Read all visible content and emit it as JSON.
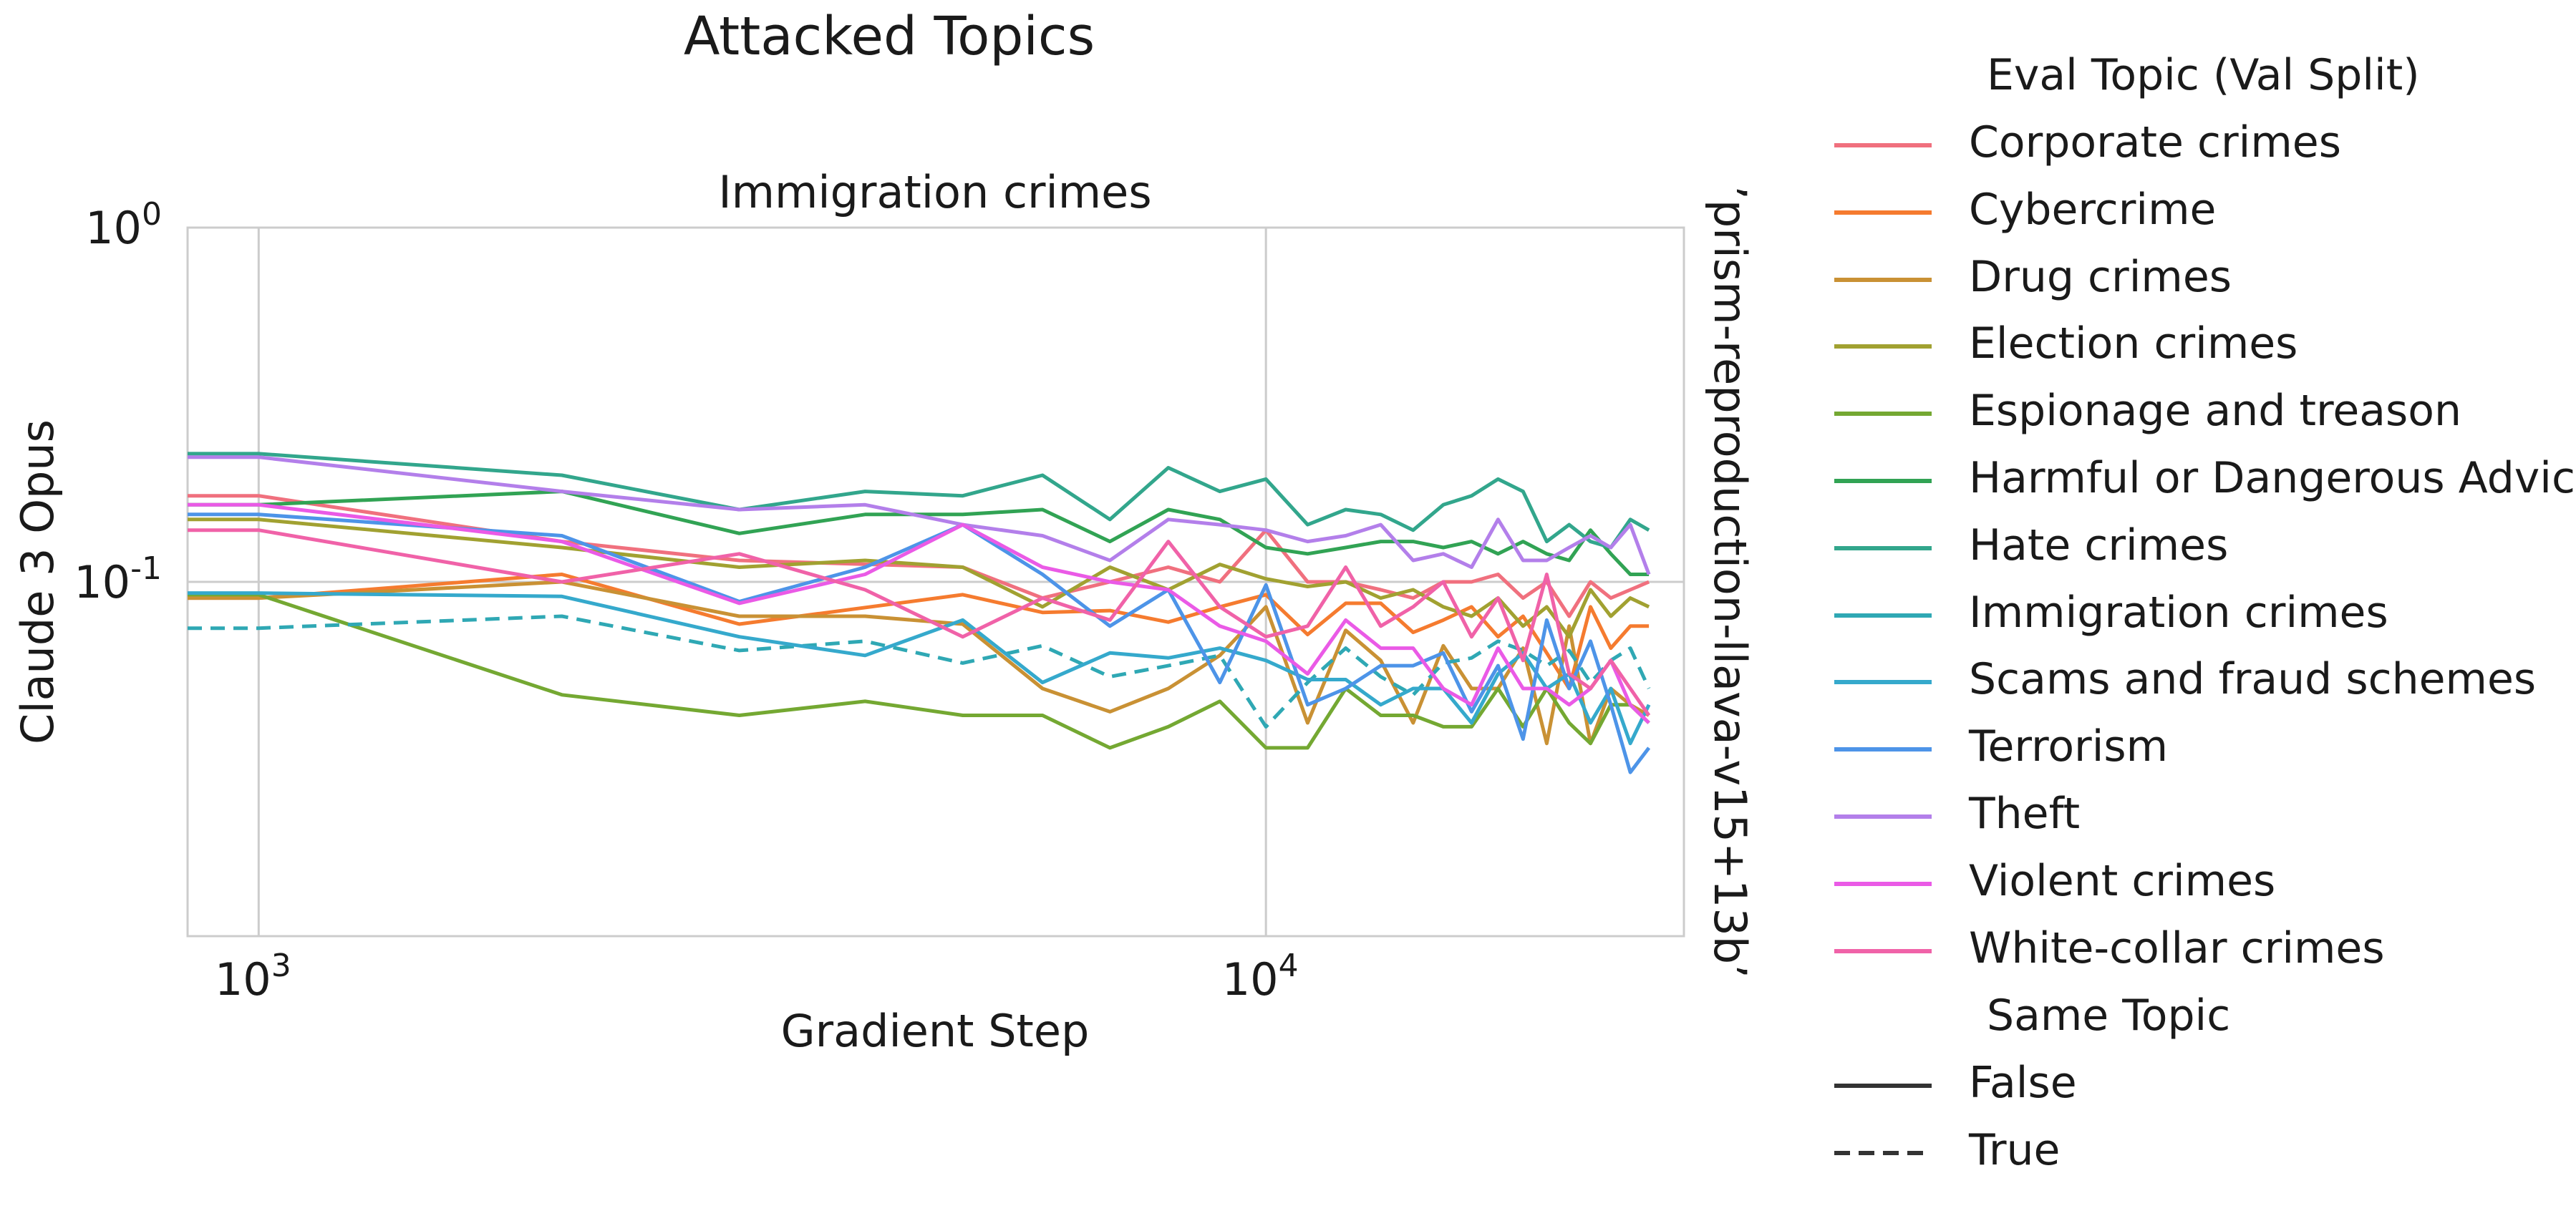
{
  "suptitle": "Attacked Topics",
  "chart_data": {
    "type": "line",
    "title": "Immigration crimes",
    "xlabel": "Gradient Step",
    "ylabel": "Claude 3 Opus",
    "right_label": "’prism-reproduction-llava-v15+13b’",
    "x_scale": "log",
    "y_scale": "log",
    "xlim": [
      850,
      26000
    ],
    "ylim": [
      0.01,
      1
    ],
    "x_ticks": [
      {
        "value": 1000,
        "label": "10^3"
      },
      {
        "value": 10000,
        "label": "10^4"
      }
    ],
    "y_ticks": [
      {
        "value": 1,
        "label": "10^0"
      },
      {
        "value": 0.1,
        "label": "10^-1"
      }
    ],
    "grid": true,
    "legend": {
      "placement": "right",
      "title": "Eval Topic (Val Split)",
      "style_title": "Same Topic",
      "style_entries": [
        {
          "label": "False",
          "dash": "solid"
        },
        {
          "label": "True",
          "dash": "dashed"
        }
      ]
    },
    "series": [
      {
        "name": "Corporate crimes",
        "color": "#f0707e",
        "dash": "solid",
        "x": [
          850,
          1000,
          2000,
          3000,
          5000,
          6000,
          7000,
          8000,
          9000,
          10000,
          11000,
          12000,
          13000,
          14000,
          15000,
          16000,
          17000,
          18000,
          19000,
          20000,
          21000,
          22000,
          23000,
          24000
        ],
        "y": [
          0.175,
          0.175,
          0.13,
          0.115,
          0.11,
          0.09,
          0.1,
          0.11,
          0.1,
          0.14,
          0.1,
          0.1,
          0.095,
          0.09,
          0.1,
          0.1,
          0.105,
          0.09,
          0.1,
          0.08,
          0.1,
          0.09,
          0.095,
          0.1
        ]
      },
      {
        "name": "Cybercrime",
        "color": "#f57b2f",
        "dash": "solid",
        "x": [
          850,
          1000,
          2000,
          3000,
          5000,
          6000,
          7000,
          8000,
          9000,
          10000,
          11000,
          12000,
          13000,
          14000,
          15000,
          16000,
          17000,
          18000,
          19000,
          20000,
          21000,
          22000,
          23000,
          24000
        ],
        "y": [
          0.09,
          0.09,
          0.105,
          0.076,
          0.092,
          0.082,
          0.083,
          0.077,
          0.085,
          0.092,
          0.071,
          0.087,
          0.087,
          0.072,
          0.078,
          0.085,
          0.07,
          0.08,
          0.063,
          0.05,
          0.085,
          0.065,
          0.075,
          0.075
        ]
      },
      {
        "name": "Drug crimes",
        "color": "#c99134",
        "dash": "solid",
        "x": [
          850,
          1000,
          2000,
          3000,
          4000,
          5000,
          6000,
          7000,
          8000,
          9000,
          10000,
          11000,
          12000,
          13000,
          14000,
          15000,
          16000,
          17000,
          18000,
          19000,
          20000,
          21000,
          22000,
          23000,
          24000
        ],
        "y": [
          0.09,
          0.09,
          0.1,
          0.08,
          0.08,
          0.076,
          0.05,
          0.043,
          0.05,
          0.062,
          0.085,
          0.04,
          0.073,
          0.06,
          0.04,
          0.066,
          0.05,
          0.05,
          0.065,
          0.035,
          0.075,
          0.035,
          0.05,
          0.045,
          0.042
        ]
      },
      {
        "name": "Election crimes",
        "color": "#a1a131",
        "dash": "solid",
        "x": [
          850,
          1000,
          2000,
          3000,
          4000,
          5000,
          6000,
          7000,
          8000,
          9000,
          10000,
          11000,
          12000,
          13000,
          14000,
          15000,
          16000,
          17000,
          18000,
          19000,
          20000,
          21000,
          22000,
          23000,
          24000
        ],
        "y": [
          0.15,
          0.15,
          0.125,
          0.11,
          0.115,
          0.11,
          0.085,
          0.11,
          0.095,
          0.112,
          0.102,
          0.097,
          0.1,
          0.09,
          0.095,
          0.085,
          0.08,
          0.09,
          0.075,
          0.085,
          0.07,
          0.095,
          0.08,
          0.09,
          0.085
        ]
      },
      {
        "name": "Espionage and treason",
        "color": "#74a832",
        "dash": "solid",
        "x": [
          850,
          1000,
          2000,
          3000,
          4000,
          5000,
          6000,
          7000,
          8000,
          9000,
          10000,
          11000,
          12000,
          13000,
          14000,
          15000,
          16000,
          17000,
          18000,
          19000,
          20000,
          21000,
          22000,
          23000,
          24000
        ],
        "y": [
          0.092,
          0.092,
          0.048,
          0.042,
          0.046,
          0.042,
          0.042,
          0.034,
          0.039,
          0.046,
          0.034,
          0.034,
          0.05,
          0.042,
          0.042,
          0.039,
          0.039,
          0.05,
          0.039,
          0.05,
          0.04,
          0.035,
          0.045,
          0.045,
          0.04
        ]
      },
      {
        "name": "Harmful or Dangerous Advice",
        "color": "#31a354",
        "dash": "solid",
        "x": [
          850,
          1000,
          2000,
          3000,
          4000,
          5000,
          6000,
          7000,
          8000,
          9000,
          10000,
          11000,
          12000,
          13000,
          14000,
          15000,
          16000,
          17000,
          18000,
          19000,
          20000,
          21000,
          22000,
          23000,
          24000
        ],
        "y": [
          0.165,
          0.165,
          0.18,
          0.137,
          0.155,
          0.155,
          0.16,
          0.13,
          0.16,
          0.15,
          0.125,
          0.12,
          0.125,
          0.13,
          0.13,
          0.125,
          0.13,
          0.12,
          0.13,
          0.12,
          0.115,
          0.14,
          0.12,
          0.105,
          0.105
        ]
      },
      {
        "name": "Hate crimes",
        "color": "#32a68c",
        "dash": "solid",
        "x": [
          850,
          1000,
          2000,
          3000,
          4000,
          5000,
          6000,
          7000,
          8000,
          9000,
          10000,
          11000,
          12000,
          13000,
          14000,
          15000,
          16000,
          17000,
          18000,
          19000,
          20000,
          21000,
          22000,
          23000,
          24000
        ],
        "y": [
          0.23,
          0.23,
          0.2,
          0.16,
          0.18,
          0.175,
          0.2,
          0.15,
          0.21,
          0.18,
          0.195,
          0.145,
          0.16,
          0.155,
          0.14,
          0.165,
          0.175,
          0.195,
          0.18,
          0.13,
          0.145,
          0.13,
          0.125,
          0.15,
          0.14
        ]
      },
      {
        "name": "Immigration crimes",
        "color": "#2fa8b4",
        "dash": "dashed",
        "x": [
          850,
          1000,
          2000,
          3000,
          4000,
          5000,
          6000,
          7000,
          8000,
          9000,
          10000,
          11000,
          12000,
          13000,
          14000,
          15000,
          16000,
          17000,
          18000,
          19000,
          20000,
          21000,
          22000,
          23000,
          24000
        ],
        "y": [
          0.074,
          0.074,
          0.08,
          0.064,
          0.068,
          0.059,
          0.066,
          0.054,
          0.058,
          0.062,
          0.039,
          0.052,
          0.065,
          0.054,
          0.048,
          0.059,
          0.061,
          0.068,
          0.064,
          0.058,
          0.064,
          0.052,
          0.06,
          0.065,
          0.05
        ]
      },
      {
        "name": "Scams and fraud schemes",
        "color": "#35a9cc",
        "dash": "solid",
        "x": [
          850,
          1000,
          2000,
          3000,
          4000,
          5000,
          6000,
          7000,
          8000,
          9000,
          10000,
          11000,
          12000,
          13000,
          14000,
          15000,
          16000,
          17000,
          18000,
          19000,
          20000,
          21000,
          22000,
          23000,
          24000
        ],
        "y": [
          0.093,
          0.093,
          0.091,
          0.07,
          0.062,
          0.078,
          0.052,
          0.063,
          0.061,
          0.065,
          0.06,
          0.053,
          0.053,
          0.045,
          0.05,
          0.05,
          0.04,
          0.055,
          0.063,
          0.05,
          0.055,
          0.04,
          0.05,
          0.035,
          0.045
        ]
      },
      {
        "name": "Terrorism",
        "color": "#4d94e8",
        "dash": "solid",
        "x": [
          850,
          1000,
          2000,
          3000,
          4000,
          5000,
          6000,
          7000,
          8000,
          9000,
          10000,
          11000,
          12000,
          13000,
          14000,
          15000,
          16000,
          17000,
          18000,
          19000,
          20000,
          21000,
          22000,
          23000,
          24000
        ],
        "y": [
          0.155,
          0.155,
          0.135,
          0.088,
          0.11,
          0.145,
          0.105,
          0.075,
          0.095,
          0.052,
          0.098,
          0.045,
          0.05,
          0.058,
          0.058,
          0.063,
          0.043,
          0.058,
          0.036,
          0.078,
          0.05,
          0.068,
          0.045,
          0.029,
          0.034
        ]
      },
      {
        "name": "Theft",
        "color": "#b37fea",
        "dash": "solid",
        "x": [
          850,
          1000,
          2000,
          3000,
          4000,
          5000,
          6000,
          7000,
          8000,
          9000,
          10000,
          11000,
          12000,
          13000,
          14000,
          15000,
          16000,
          17000,
          18000,
          19000,
          20000,
          21000,
          22000,
          23000,
          24000
        ],
        "y": [
          0.225,
          0.225,
          0.18,
          0.16,
          0.165,
          0.145,
          0.135,
          0.115,
          0.15,
          0.145,
          0.14,
          0.13,
          0.135,
          0.145,
          0.115,
          0.12,
          0.11,
          0.15,
          0.115,
          0.115,
          0.125,
          0.135,
          0.125,
          0.145,
          0.105
        ]
      },
      {
        "name": "Violent crimes",
        "color": "#ea5ae6",
        "dash": "solid",
        "x": [
          850,
          1000,
          2000,
          3000,
          4000,
          5000,
          6000,
          7000,
          8000,
          9000,
          10000,
          11000,
          12000,
          13000,
          14000,
          15000,
          16000,
          17000,
          18000,
          19000,
          20000,
          21000,
          22000,
          23000,
          24000
        ],
        "y": [
          0.165,
          0.165,
          0.13,
          0.087,
          0.105,
          0.145,
          0.11,
          0.1,
          0.095,
          0.075,
          0.068,
          0.055,
          0.078,
          0.065,
          0.065,
          0.05,
          0.045,
          0.065,
          0.05,
          0.05,
          0.045,
          0.05,
          0.06,
          0.045,
          0.04
        ]
      },
      {
        "name": "White-collar crimes",
        "color": "#f062a8",
        "dash": "solid",
        "x": [
          850,
          1000,
          2000,
          3000,
          4000,
          5000,
          6000,
          7000,
          8000,
          9000,
          10000,
          11000,
          12000,
          13000,
          14000,
          15000,
          16000,
          17000,
          18000,
          19000,
          20000,
          21000,
          22000,
          23000,
          24000
        ],
        "y": [
          0.14,
          0.14,
          0.1,
          0.12,
          0.095,
          0.07,
          0.09,
          0.078,
          0.13,
          0.085,
          0.07,
          0.075,
          0.11,
          0.075,
          0.085,
          0.1,
          0.07,
          0.09,
          0.06,
          0.105,
          0.055,
          0.05,
          0.06,
          0.05,
          0.042
        ]
      }
    ]
  }
}
